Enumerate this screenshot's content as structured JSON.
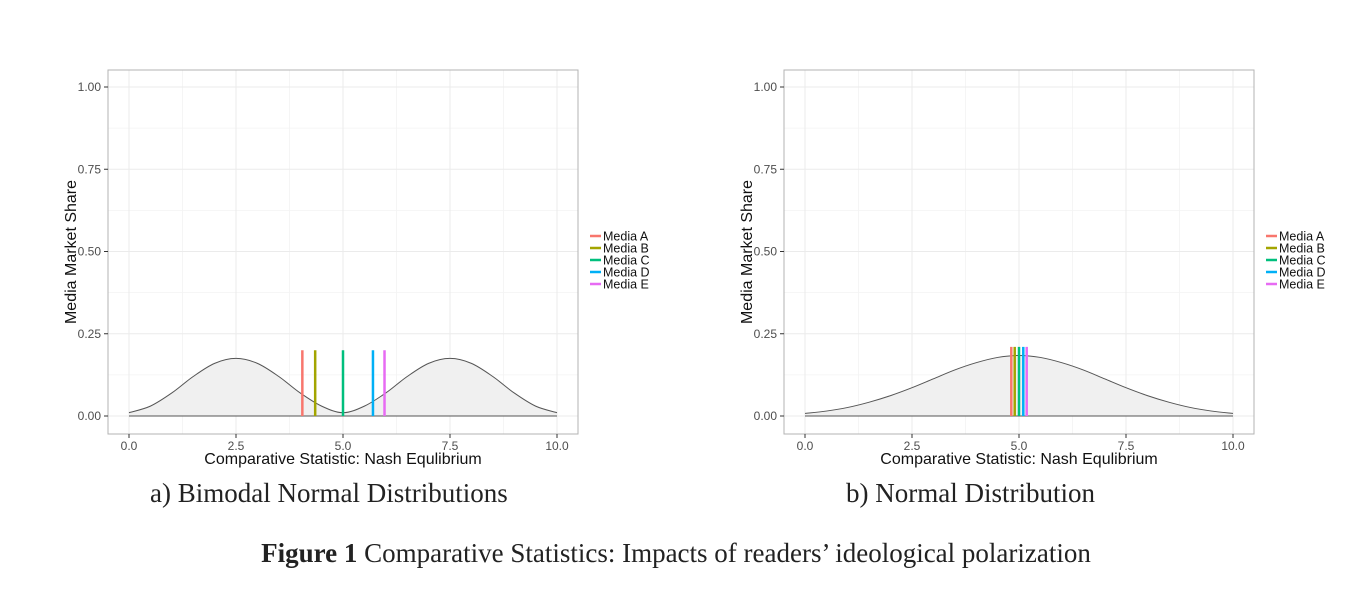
{
  "figure": {
    "label": "Figure 1",
    "caption": "Comparative Statistics: Impacts of readers’ ideological polarization"
  },
  "chart_data": [
    {
      "type": "area",
      "subcaption": "a) Bimodal Normal Distributions",
      "xlabel": "Comparative Statistic: Nash Equlibrium",
      "ylabel": "Media Market Share",
      "xlim": [
        0,
        10
      ],
      "ylim": [
        0,
        1
      ],
      "x_ticks": [
        "0.0",
        "2.5",
        "5.0",
        "7.5",
        "10.0"
      ],
      "y_ticks": [
        "0.00",
        "0.25",
        "0.50",
        "0.75",
        "1.00"
      ],
      "grid": true,
      "legend_position": "right",
      "density": {
        "x": [
          0,
          0.5,
          1,
          1.5,
          2,
          2.5,
          3,
          3.5,
          4,
          4.5,
          5,
          5.5,
          6,
          6.5,
          7,
          7.5,
          8,
          8.5,
          9,
          9.5,
          10
        ],
        "y": [
          0.01,
          0.03,
          0.07,
          0.12,
          0.16,
          0.175,
          0.16,
          0.12,
          0.07,
          0.03,
          0.01,
          0.03,
          0.07,
          0.12,
          0.16,
          0.175,
          0.16,
          0.12,
          0.07,
          0.03,
          0.01
        ]
      },
      "series": [
        {
          "name": "Media A",
          "color": "#F8766D",
          "x": 4.05,
          "y": 0.2
        },
        {
          "name": "Media B",
          "color": "#A3A500",
          "x": 4.35,
          "y": 0.2
        },
        {
          "name": "Media C",
          "color": "#00BF7D",
          "x": 5.0,
          "y": 0.2
        },
        {
          "name": "Media D",
          "color": "#00B0F6",
          "x": 5.7,
          "y": 0.2
        },
        {
          "name": "Media E",
          "color": "#E76BF3",
          "x": 5.97,
          "y": 0.2
        }
      ]
    },
    {
      "type": "area",
      "subcaption": "b) Normal Distribution",
      "xlabel": "Comparative Statistic: Nash Equlibrium",
      "ylabel": "Media Market Share",
      "xlim": [
        0,
        10
      ],
      "ylim": [
        0,
        1
      ],
      "x_ticks": [
        "0.0",
        "2.5",
        "5.0",
        "7.5",
        "10.0"
      ],
      "y_ticks": [
        "0.00",
        "0.25",
        "0.50",
        "0.75",
        "1.00"
      ],
      "grid": true,
      "legend_position": "right",
      "density": {
        "x": [
          0,
          0.5,
          1,
          1.5,
          2,
          2.5,
          3,
          3.5,
          4,
          4.5,
          5,
          5.5,
          6,
          6.5,
          7,
          7.5,
          8,
          8.5,
          9,
          9.5,
          10
        ],
        "y": [
          0.008,
          0.015,
          0.026,
          0.042,
          0.062,
          0.086,
          0.113,
          0.14,
          0.162,
          0.178,
          0.184,
          0.178,
          0.162,
          0.14,
          0.113,
          0.086,
          0.062,
          0.042,
          0.026,
          0.015,
          0.008
        ]
      },
      "series": [
        {
          "name": "Media A",
          "color": "#F8766D",
          "x": 4.82,
          "y": 0.21
        },
        {
          "name": "Media B",
          "color": "#A3A500",
          "x": 4.9,
          "y": 0.21
        },
        {
          "name": "Media C",
          "color": "#00BF7D",
          "x": 5.0,
          "y": 0.21
        },
        {
          "name": "Media D",
          "color": "#00B0F6",
          "x": 5.1,
          "y": 0.21
        },
        {
          "name": "Media E",
          "color": "#E76BF3",
          "x": 5.18,
          "y": 0.21
        }
      ]
    }
  ]
}
